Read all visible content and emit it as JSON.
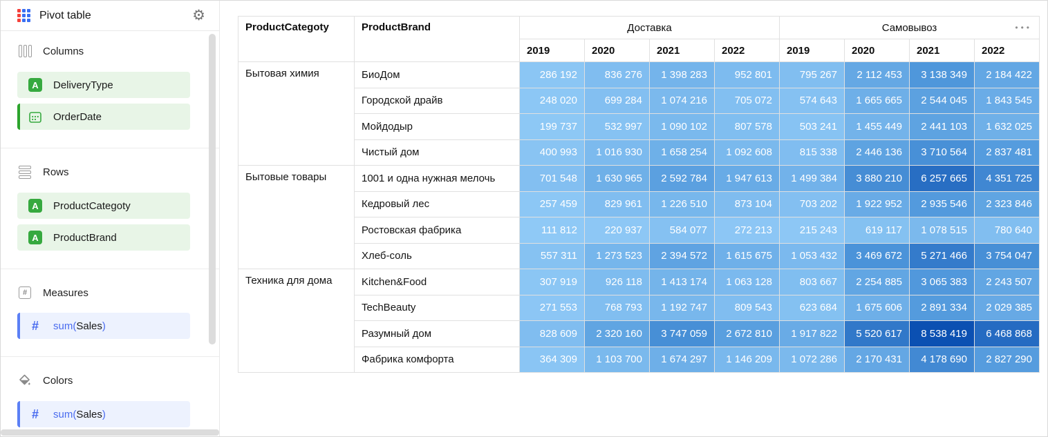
{
  "app": {
    "title": "Pivot table"
  },
  "icons": {
    "logo": "grid-3x3",
    "gear": "⚙",
    "string_field_badge": "A",
    "hash": "#",
    "menu_dots": "•••"
  },
  "sidebar": {
    "columns": {
      "label": "Columns",
      "fields": [
        {
          "label": "DeliveryType",
          "type": "string"
        },
        {
          "label": "OrderDate",
          "type": "date",
          "active_bar": true
        }
      ]
    },
    "rows": {
      "label": "Rows",
      "fields": [
        {
          "label": "ProductCategoty",
          "type": "string"
        },
        {
          "label": "ProductBrand",
          "type": "string"
        }
      ]
    },
    "measures": {
      "label": "Measures",
      "field": {
        "fn": "sum(",
        "name": "Sales",
        "close": ")"
      }
    },
    "colors_section": {
      "label": "Colors",
      "field": {
        "fn": "sum(",
        "name": "Sales",
        "close": ")"
      }
    }
  },
  "theme": {
    "logo_red": "#f5413b",
    "logo_blue": "#3a6ff2",
    "chip_green_bg": "#e8f5e7",
    "chip_green_icon": "#36a93f",
    "chip_green_bar": "#2ca42c",
    "chip_blue_bg": "#edf2fe",
    "chip_blue_accent": "#4a6cef",
    "chip_blue_bar": "#5b7ff5",
    "grid_line": "#e0e0e0",
    "cell_text": "#ffffff"
  },
  "pivot": {
    "corner_headers": [
      "ProductCategoty",
      "ProductBrand"
    ],
    "column_groups": [
      {
        "label": "Доставка",
        "years": [
          "2019",
          "2020",
          "2021",
          "2022"
        ]
      },
      {
        "label": "Самовывоз",
        "years": [
          "2019",
          "2020",
          "2021",
          "2022"
        ]
      }
    ],
    "menu_dots": "•••",
    "row_groups": [
      {
        "category": "Бытовая химия",
        "rows": [
          {
            "brand": "БиоДом",
            "values": [
              286192,
              836276,
              1398283,
              952801,
              795267,
              2112453,
              3138349,
              2184422
            ]
          },
          {
            "brand": "Городской драйв",
            "values": [
              248020,
              699284,
              1074216,
              705072,
              574643,
              1665665,
              2544045,
              1843545
            ]
          },
          {
            "brand": "Мойдодыр",
            "values": [
              199737,
              532997,
              1090102,
              807578,
              503241,
              1455449,
              2441103,
              1632025
            ]
          },
          {
            "brand": "Чистый дом",
            "values": [
              400993,
              1016930,
              1658254,
              1092608,
              815338,
              2446136,
              3710564,
              2837481
            ]
          }
        ]
      },
      {
        "category": "Бытовые товары",
        "rows": [
          {
            "brand": "1001 и одна нужная мелочь",
            "values": [
              701548,
              1630965,
              2592784,
              1947613,
              1499384,
              3880210,
              6257665,
              4351725
            ]
          },
          {
            "brand": "Кедровый лес",
            "values": [
              257459,
              829961,
              1226510,
              873104,
              703202,
              1922952,
              2935546,
              2323846
            ]
          },
          {
            "brand": "Ростовская фабрика",
            "values": [
              111812,
              220937,
              584077,
              272213,
              215243,
              619117,
              1078515,
              780640
            ]
          },
          {
            "brand": "Хлеб-соль",
            "values": [
              557311,
              1273523,
              2394572,
              1615675,
              1053432,
              3469672,
              5271466,
              3754047
            ]
          }
        ]
      },
      {
        "category": "Техника для дома",
        "rows": [
          {
            "brand": "Kitchen&Food",
            "values": [
              307919,
              926118,
              1413174,
              1063128,
              803667,
              2254885,
              3065383,
              2243507
            ]
          },
          {
            "brand": "TechBeauty",
            "values": [
              271553,
              768793,
              1192747,
              809543,
              623684,
              1675606,
              2891334,
              2029385
            ]
          },
          {
            "brand": "Разумный дом",
            "values": [
              828609,
              2320160,
              3747059,
              2672810,
              1917822,
              5520617,
              8538419,
              6468868
            ]
          },
          {
            "brand": "Фабрика комфорта",
            "values": [
              364309,
              1103700,
              1674297,
              1146209,
              1072286,
              2170431,
              4178690,
              2827290
            ]
          }
        ]
      }
    ],
    "color_scale": {
      "min_value": 111812,
      "max_value": 8538419,
      "stops": [
        {
          "t": 0,
          "color": "#8FC9F6"
        },
        {
          "t": 0.36,
          "color": "#4F97DB"
        },
        {
          "t": 1,
          "color": "#0B50B2"
        }
      ]
    }
  }
}
